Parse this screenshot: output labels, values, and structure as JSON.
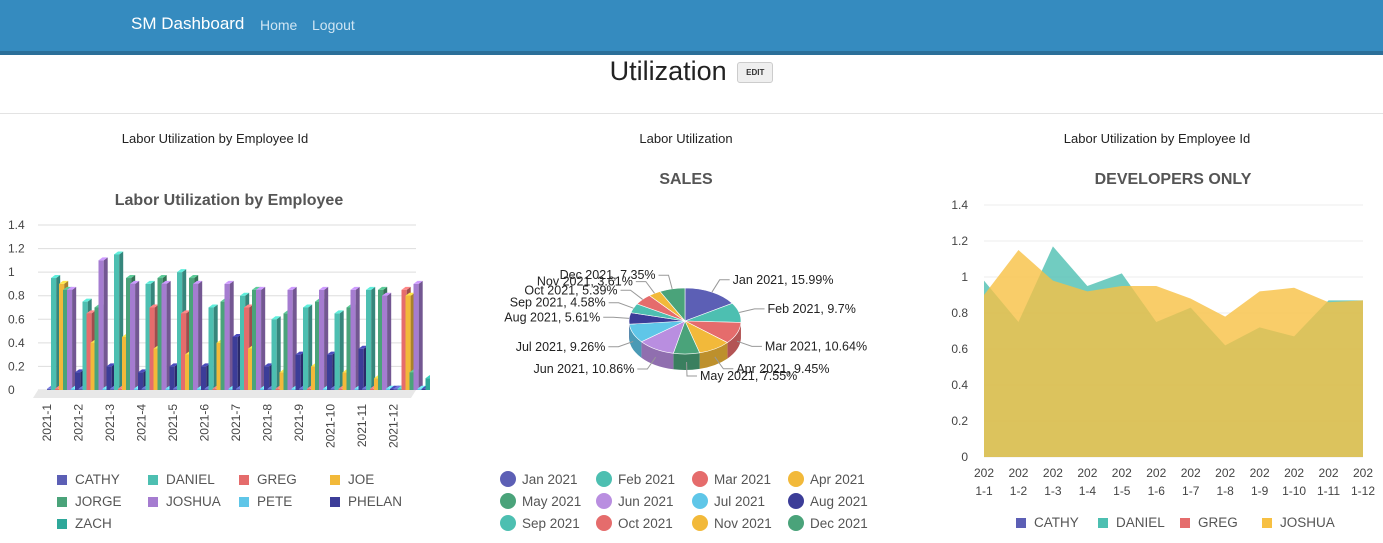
{
  "nav": {
    "brand": "SM Dashboard",
    "links": [
      "Home",
      "Logout"
    ]
  },
  "page": {
    "title": "Utilization",
    "edit_label": "EDIT"
  },
  "panels": [
    {
      "title": "Labor Utilization by Employee Id"
    },
    {
      "title": "Labor Utilization"
    },
    {
      "title": "Labor Utilization by Employee Id"
    }
  ],
  "chart_data": [
    {
      "type": "bar",
      "title": "Labor Utilization by Employee",
      "xlabel": "",
      "ylabel": "",
      "ylim": [
        0,
        1.4
      ],
      "yticks": [
        "0",
        "0.2",
        "0.4",
        "0.6",
        "0.8",
        "1",
        "1.2",
        "1.4"
      ],
      "categories": [
        "2021-1",
        "2021-2",
        "2021-3",
        "2021-4",
        "2021-5",
        "2021-6",
        "2021-7",
        "2021-8",
        "2021-9",
        "2021-10",
        "2021-11",
        "2021-12"
      ],
      "legend_position": "bottom",
      "series": [
        {
          "name": "CATHY",
          "color": "#5c5fb5",
          "values": [
            0,
            0,
            0,
            0,
            0,
            0,
            0,
            0,
            0,
            0,
            0,
            0
          ]
        },
        {
          "name": "DANIEL",
          "color": "#4dbfb1",
          "values": [
            0.95,
            0.75,
            1.15,
            0.9,
            1.0,
            0.7,
            0.8,
            0.6,
            0.7,
            0.65,
            0.85,
            0
          ]
        },
        {
          "name": "GREG",
          "color": "#e56c6c",
          "values": [
            0,
            0.65,
            0,
            0.7,
            0.65,
            0,
            0.7,
            0,
            0,
            0,
            0,
            0.85
          ]
        },
        {
          "name": "JOE",
          "color": "#f2b93a",
          "values": [
            0.9,
            0.4,
            0.45,
            0.35,
            0.3,
            0.4,
            0.35,
            0.15,
            0.2,
            0.15,
            0.1,
            0.8
          ]
        },
        {
          "name": "JORGE",
          "color": "#4aa37a",
          "values": [
            0.85,
            0.7,
            0.95,
            0.95,
            0.95,
            0.75,
            0.85,
            0.65,
            0.75,
            0.7,
            0.85,
            0.15
          ]
        },
        {
          "name": "JOSHUA",
          "color": "#a57cd0",
          "values": [
            0.85,
            1.1,
            0.9,
            0.9,
            0.9,
            0.9,
            0.85,
            0.85,
            0.85,
            0.85,
            0.8,
            0.9
          ]
        },
        {
          "name": "PETE",
          "color": "#5fc6e8",
          "values": [
            0,
            0,
            0,
            0,
            0,
            0,
            0,
            0,
            0,
            0,
            0,
            0
          ]
        },
        {
          "name": "PHELAN",
          "color": "#3c3d98",
          "values": [
            0.15,
            0.2,
            0.15,
            0.2,
            0.2,
            0.45,
            0.2,
            0.3,
            0.3,
            0.35,
            0.0,
            0.0
          ]
        },
        {
          "name": "ZACH",
          "color": "#2ea89a",
          "values": [
            0,
            0,
            0,
            0,
            0,
            0,
            0,
            0,
            0,
            0,
            0,
            0.1
          ]
        }
      ]
    },
    {
      "type": "pie",
      "title": "SALES",
      "legend_position": "bottom",
      "slices": [
        {
          "label": "Jan 2021",
          "value": 15.99,
          "text": "Jan 2021, 15.99%",
          "color": "#5c5fb5"
        },
        {
          "label": "Feb 2021",
          "value": 9.7,
          "text": "Feb 2021, 9.7%",
          "color": "#4dbfb1"
        },
        {
          "label": "Mar 2021",
          "value": 10.64,
          "text": "Mar 2021, 10.64%",
          "color": "#e56c6c"
        },
        {
          "label": "Apr 2021",
          "value": 9.45,
          "text": "Apr 2021, 9.45%",
          "color": "#f2b93a"
        },
        {
          "label": "May 2021",
          "value": 7.55,
          "text": "May 2021, 7.55%",
          "color": "#4aa37a"
        },
        {
          "label": "Jun 2021",
          "value": 10.86,
          "text": "Jun 2021, 10.86%",
          "color": "#b98ee0"
        },
        {
          "label": "Jul 2021",
          "value": 9.26,
          "text": "Jul 2021, 9.26%",
          "color": "#5fc6e8"
        },
        {
          "label": "Aug 2021",
          "value": 5.61,
          "text": "Aug 2021, 5.61%",
          "color": "#3c3d98"
        },
        {
          "label": "Sep 2021",
          "value": 4.58,
          "text": "Sep 2021, 4.58%",
          "color": "#4dbfb1"
        },
        {
          "label": "Oct 2021",
          "value": 5.39,
          "text": "Oct 2021, 5.39%",
          "color": "#e56c6c"
        },
        {
          "label": "Nov 2021",
          "value": 3.61,
          "text": "Nov 2021, 3.61%",
          "color": "#f2b93a"
        },
        {
          "label": "Dec 2021",
          "value": 7.35,
          "text": "Dec 2021, 7.35%",
          "color": "#4aa37a"
        }
      ]
    },
    {
      "type": "area",
      "title": "DEVELOPERS ONLY",
      "ylim": [
        0,
        1.4
      ],
      "yticks": [
        "0",
        "0.2",
        "0.4",
        "0.6",
        "0.8",
        "1",
        "1.2",
        "1.4"
      ],
      "categories": [
        "2021-1",
        "2021-2",
        "2021-3",
        "2021-4",
        "2021-5",
        "2021-6",
        "2021-7",
        "2021-8",
        "2021-9",
        "2021-10",
        "2021-11",
        "2021-12"
      ],
      "legend_position": "bottom",
      "series": [
        {
          "name": "CATHY",
          "color": "#5c5fb5",
          "values": [
            0,
            0,
            0,
            0,
            0,
            0,
            0,
            0,
            0,
            0,
            0,
            0
          ]
        },
        {
          "name": "DANIEL",
          "color": "#4dbfb1",
          "values": [
            0.98,
            0.75,
            1.17,
            0.95,
            1.02,
            0.75,
            0.83,
            0.62,
            0.72,
            0.67,
            0.87,
            0.87
          ]
        },
        {
          "name": "GREG",
          "color": "#e56c6c",
          "values": [
            0,
            0,
            0,
            0,
            0,
            0,
            0,
            0,
            0,
            0,
            0,
            0
          ]
        },
        {
          "name": "JOSHUA",
          "color": "#f7c043",
          "values": [
            0.9,
            1.15,
            0.98,
            0.92,
            0.95,
            0.95,
            0.88,
            0.78,
            0.92,
            0.94,
            0.86,
            0.87
          ]
        }
      ]
    }
  ]
}
